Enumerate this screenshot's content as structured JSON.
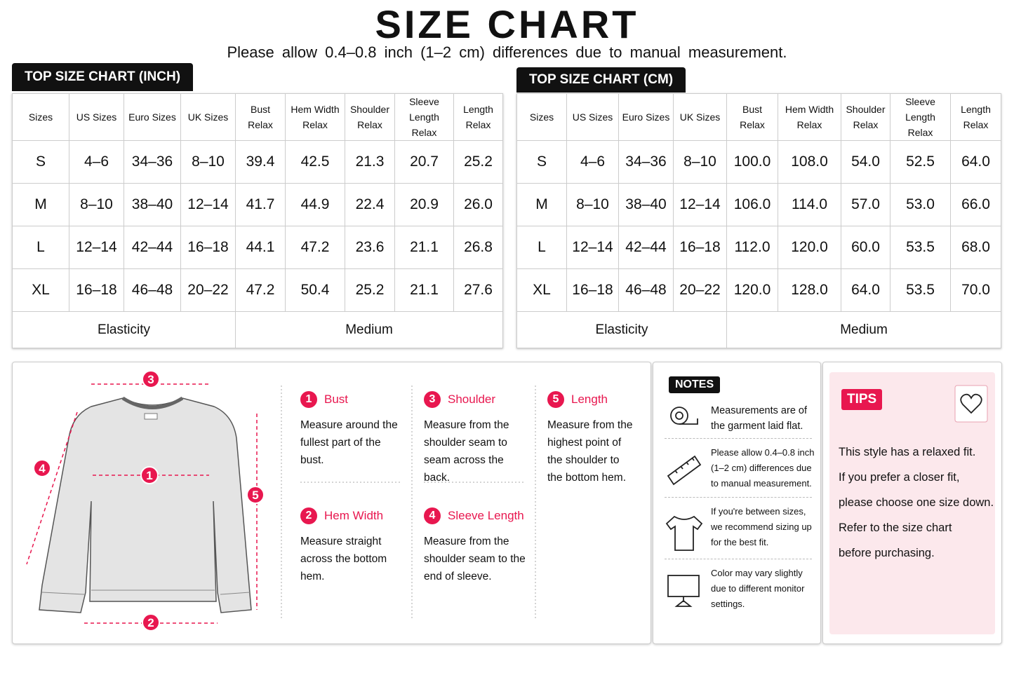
{
  "header": {
    "title": "SIZE CHART",
    "subtitle": "Please allow 0.4–0.8 inch (1–2 cm) differences due to manual measurement."
  },
  "tables": [
    {
      "title": "TOP SIZE CHART (INCH)",
      "columns": [
        [
          "Sizes"
        ],
        [
          "US Sizes"
        ],
        [
          "Euro Sizes"
        ],
        [
          "UK Sizes"
        ],
        [
          "Bust",
          "Relax"
        ],
        [
          "Hem Width",
          "Relax"
        ],
        [
          "Shoulder",
          "Relax"
        ],
        [
          "Sleeve Length",
          "Relax"
        ],
        [
          "Length",
          "Relax"
        ]
      ],
      "rows": [
        [
          "S",
          "4–6",
          "34–36",
          "8–10",
          "39.4",
          "42.5",
          "21.3",
          "20.7",
          "25.2"
        ],
        [
          "M",
          "8–10",
          "38–40",
          "12–14",
          "41.7",
          "44.9",
          "22.4",
          "20.9",
          "26.0"
        ],
        [
          "L",
          "12–14",
          "42–44",
          "16–18",
          "44.1",
          "47.2",
          "23.6",
          "21.1",
          "26.8"
        ],
        [
          "XL",
          "16–18",
          "46–48",
          "20–22",
          "47.2",
          "50.4",
          "25.2",
          "21.1",
          "27.6"
        ]
      ],
      "footer": [
        "Elasticity",
        "Medium"
      ]
    },
    {
      "title": "TOP SIZE CHART (CM)",
      "columns": [
        [
          "Sizes"
        ],
        [
          "US Sizes"
        ],
        [
          "Euro Sizes"
        ],
        [
          "UK Sizes"
        ],
        [
          "Bust",
          "Relax"
        ],
        [
          "Hem Width",
          "Relax"
        ],
        [
          "Shoulder",
          "Relax"
        ],
        [
          "Sleeve Length",
          "Relax"
        ],
        [
          "Length",
          "Relax"
        ]
      ],
      "rows": [
        [
          "S",
          "4–6",
          "34–36",
          "8–10",
          "100.0",
          "108.0",
          "54.0",
          "52.5",
          "64.0"
        ],
        [
          "M",
          "8–10",
          "38–40",
          "12–14",
          "106.0",
          "114.0",
          "57.0",
          "53.0",
          "66.0"
        ],
        [
          "L",
          "12–14",
          "42–44",
          "16–18",
          "112.0",
          "120.0",
          "60.0",
          "53.5",
          "68.0"
        ],
        [
          "XL",
          "16–18",
          "46–48",
          "20–22",
          "120.0",
          "128.0",
          "64.0",
          "53.5",
          "70.0"
        ]
      ],
      "footer": [
        "Elasticity",
        "Medium"
      ]
    }
  ],
  "measurements": [
    {
      "number": "1",
      "title": "Bust",
      "text": "Measure around the fullest part of the bust."
    },
    {
      "number": "2",
      "title": "Hem Width",
      "text": "Measure straight across the bottom hem."
    },
    {
      "number": "3",
      "title": "Shoulder",
      "text": "Measure from the shoulder seam to seam across the back."
    },
    {
      "number": "4",
      "title": "Sleeve Length",
      "text": "Measure from the shoulder seam to the end of sleeve."
    },
    {
      "number": "5",
      "title": "Length",
      "text": "Measure from the highest point of the shoulder to the bottom hem."
    }
  ],
  "notes": {
    "title": "NOTES",
    "items": [
      "Measurements are of the garment laid flat.",
      "Please allow 0.4–0.8 inch (1–2 cm) differences due to manual measurement.",
      "If you're between sizes, we recommend sizing up for the best fit.",
      "Color may vary slightly due to different monitor settings."
    ]
  },
  "tips": {
    "title": "TIPS",
    "lines": [
      "This style has a relaxed fit.",
      "If you prefer a closer fit,",
      "please choose one size down.",
      "Refer to the size chart",
      "before purchasing."
    ]
  }
}
